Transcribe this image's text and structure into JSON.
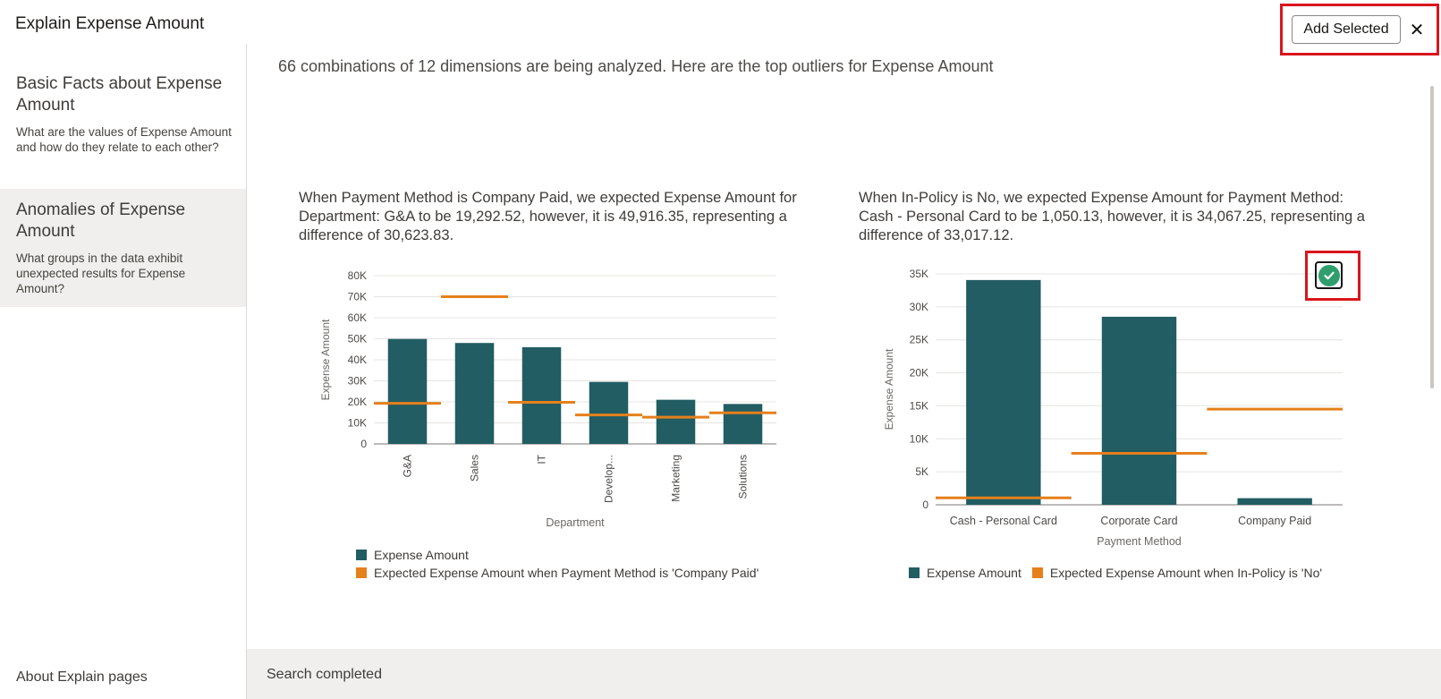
{
  "header": {
    "title": "Explain Expense Amount",
    "add_selected_label": "Add Selected",
    "close_glyph": "✕"
  },
  "sidebar": {
    "items": [
      {
        "title": "Basic Facts about Expense Amount",
        "description": "What are the values of Expense Amount and how do they relate to each other?",
        "active": false
      },
      {
        "title": "Anomalies of Expense Amount",
        "description": "What groups in the data exhibit unexpected results for Expense Amount?",
        "active": true
      }
    ],
    "about_label": "About Explain pages"
  },
  "main": {
    "summary": "66 combinations of 12 dimensions are being analyzed. Here are the top outliers for Expense Amount"
  },
  "cards": [
    {
      "description": "When Payment Method is Company Paid, we expected Expense Amount for Department: G&A to be 19,292.52, however, it is 49,916.35, representing a difference of 30,623.83.",
      "legend": [
        "Expense Amount",
        "Expected Expense Amount when Payment Method is 'Company Paid'"
      ],
      "selected": false
    },
    {
      "description": "When In-Policy is No, we expected Expense Amount for Payment Method: Cash - Personal Card to be 1,050.13, however, it is 34,067.25, representing a difference of 33,017.12.",
      "legend": [
        "Expense Amount",
        "Expected Expense Amount when In-Policy is 'No'"
      ],
      "selected": true,
      "select_icon": "check-circle-icon"
    }
  ],
  "chart_data": [
    {
      "type": "bar",
      "categories": [
        "G&A",
        "Sales",
        "IT",
        "Develop...",
        "Marketing",
        "Solutions"
      ],
      "series": [
        {
          "name": "Expense Amount",
          "values": [
            49916.35,
            48000,
            46000,
            29500,
            21000,
            19000
          ]
        },
        {
          "name": "Expected Expense Amount when Payment Method is 'Company Paid'",
          "values": [
            19292.52,
            70000,
            19800,
            13800,
            12700,
            14800
          ]
        }
      ],
      "xlabel": "Department",
      "ylabel": "Expense Amount",
      "ylim": [
        0,
        80000
      ],
      "yticks": [
        0,
        10000,
        20000,
        30000,
        40000,
        50000,
        60000,
        70000,
        80000
      ],
      "ytick_labels": [
        "0",
        "10K",
        "20K",
        "30K",
        "40K",
        "50K",
        "60K",
        "70K",
        "80K"
      ],
      "grid": true,
      "colors": {
        "bar": "#225d63",
        "expected": "#e5801c"
      }
    },
    {
      "type": "bar",
      "categories": [
        "Cash - Personal Card",
        "Corporate Card",
        "Company Paid"
      ],
      "series": [
        {
          "name": "Expense Amount",
          "values": [
            34067.25,
            28500,
            1000
          ]
        },
        {
          "name": "Expected Expense Amount when In-Policy is 'No'",
          "values": [
            1050.13,
            7800,
            14500
          ]
        }
      ],
      "xlabel": "Payment Method",
      "ylabel": "Expense Amount",
      "ylim": [
        0,
        35000
      ],
      "yticks": [
        0,
        5000,
        10000,
        15000,
        20000,
        25000,
        30000,
        35000
      ],
      "ytick_labels": [
        "0",
        "5K",
        "10K",
        "15K",
        "20K",
        "25K",
        "30K",
        "35K"
      ],
      "grid": true,
      "colors": {
        "bar": "#225d63",
        "expected": "#e5801c"
      }
    }
  ],
  "status": {
    "text": "Search completed"
  },
  "colors": {
    "accent_highlight": "#d9151e",
    "bar": "#225d63",
    "expected": "#e5801c",
    "check": "#2f9e6d"
  }
}
